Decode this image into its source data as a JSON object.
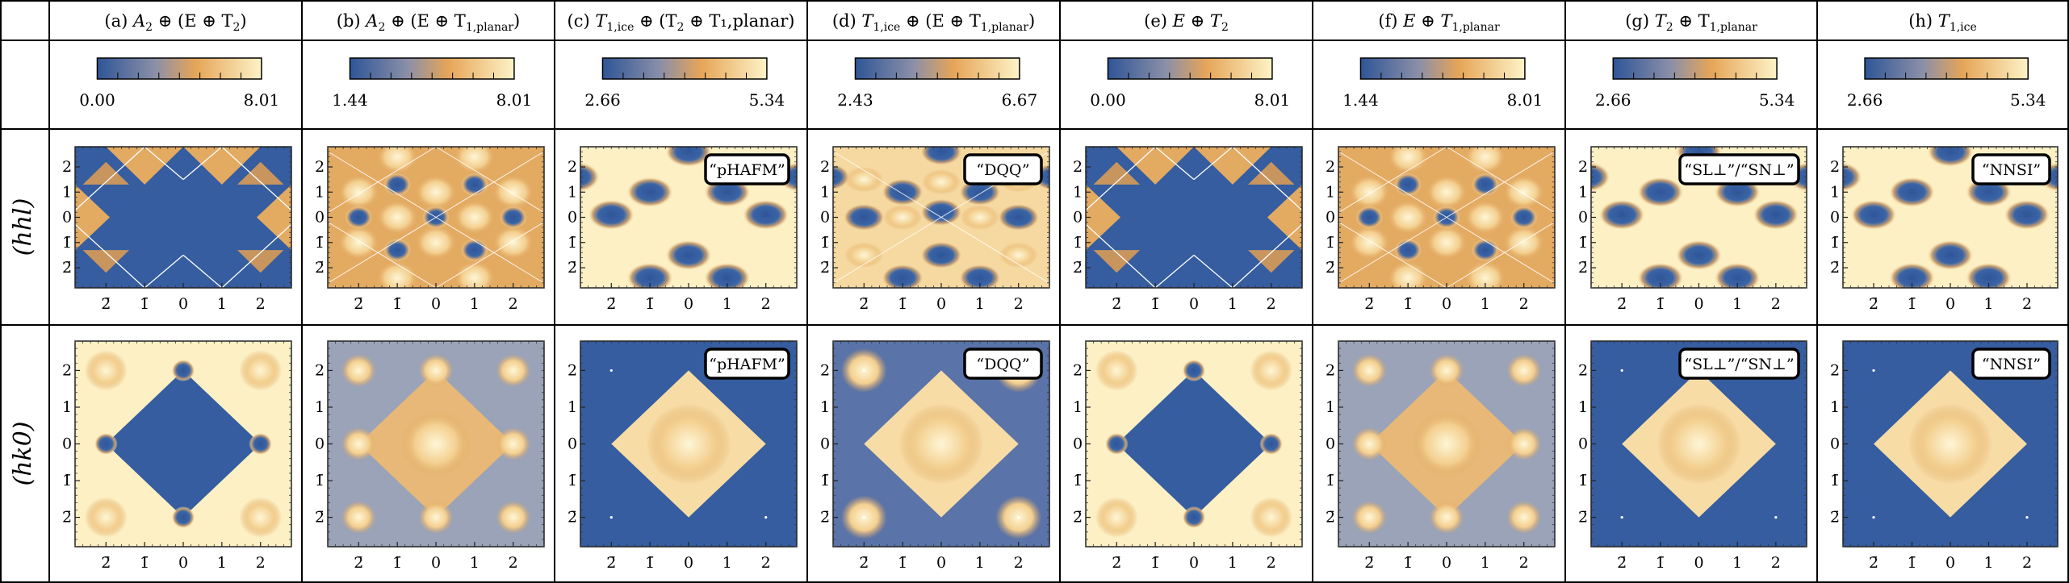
{
  "figure": {
    "columns": [
      {
        "letter": "(a)",
        "base": "A",
        "sub": "2",
        "rest": " ⊕ (E ⊕ T",
        "sub2": "2",
        "rest2": ")",
        "cb_min": "0.00",
        "cb_max": "8.01",
        "label": "",
        "pattern": "a"
      },
      {
        "letter": "(b)",
        "base": "A",
        "sub": "2",
        "rest": " ⊕ (E ⊕ T",
        "sub2": "1,planar",
        "rest2": ")",
        "cb_min": "1.44",
        "cb_max": "8.01",
        "label": "",
        "pattern": "b"
      },
      {
        "letter": "(c)",
        "base": "T",
        "sub": "1,ice",
        "rest": " ⊕ (T",
        "sub2": "2",
        "rest2": " ⊕ T₁,planar)",
        "cb_min": "2.66",
        "cb_max": "5.34",
        "label": "“pHAFM”",
        "pattern": "c"
      },
      {
        "letter": "(d)",
        "base": "T",
        "sub": "1,ice",
        "rest": " ⊕ (E ⊕ T",
        "sub2": "1,planar",
        "rest2": ")",
        "cb_min": "2.43",
        "cb_max": "6.67",
        "label": "“DQQ”",
        "pattern": "d"
      },
      {
        "letter": "(e)",
        "base": "E ⊕ T",
        "sub": "2",
        "rest": "",
        "sub2": "",
        "rest2": "",
        "cb_min": "0.00",
        "cb_max": "8.01",
        "label": "",
        "pattern": "a"
      },
      {
        "letter": "(f)",
        "base": "E ⊕ T",
        "sub": "1,planar",
        "rest": "",
        "sub2": "",
        "rest2": "",
        "cb_min": "1.44",
        "cb_max": "8.01",
        "label": "",
        "pattern": "b"
      },
      {
        "letter": "(g)",
        "base": "T",
        "sub": "2",
        "rest": " ⊕ T",
        "sub2": "1,planar",
        "rest2": "",
        "cb_min": "2.66",
        "cb_max": "5.34",
        "label": "“SL⊥”/“SN⊥”",
        "pattern": "c"
      },
      {
        "letter": "(h)",
        "base": "T",
        "sub": "1,ice",
        "rest": "",
        "sub2": "",
        "rest2": "",
        "cb_min": "2.66",
        "cb_max": "5.34",
        "label": "“NNSI”",
        "pattern": "c"
      }
    ],
    "rows": [
      {
        "label": "(hhl)",
        "y_ticks": [
          "2",
          "1",
          "0",
          "1̄",
          "2̄"
        ],
        "x_ticks": [
          "2̄",
          "1̄",
          "0",
          "1",
          "2"
        ]
      },
      {
        "label": "(hk0)",
        "y_ticks": [
          "2",
          "1",
          "0",
          "1̄",
          "2̄"
        ],
        "x_ticks": [
          "2̄",
          "1̄",
          "0",
          "1",
          "2"
        ]
      }
    ],
    "colormap": {
      "low": "#3a64a6",
      "mid": "#e0a55c",
      "high": "#fdf3c7"
    }
  }
}
